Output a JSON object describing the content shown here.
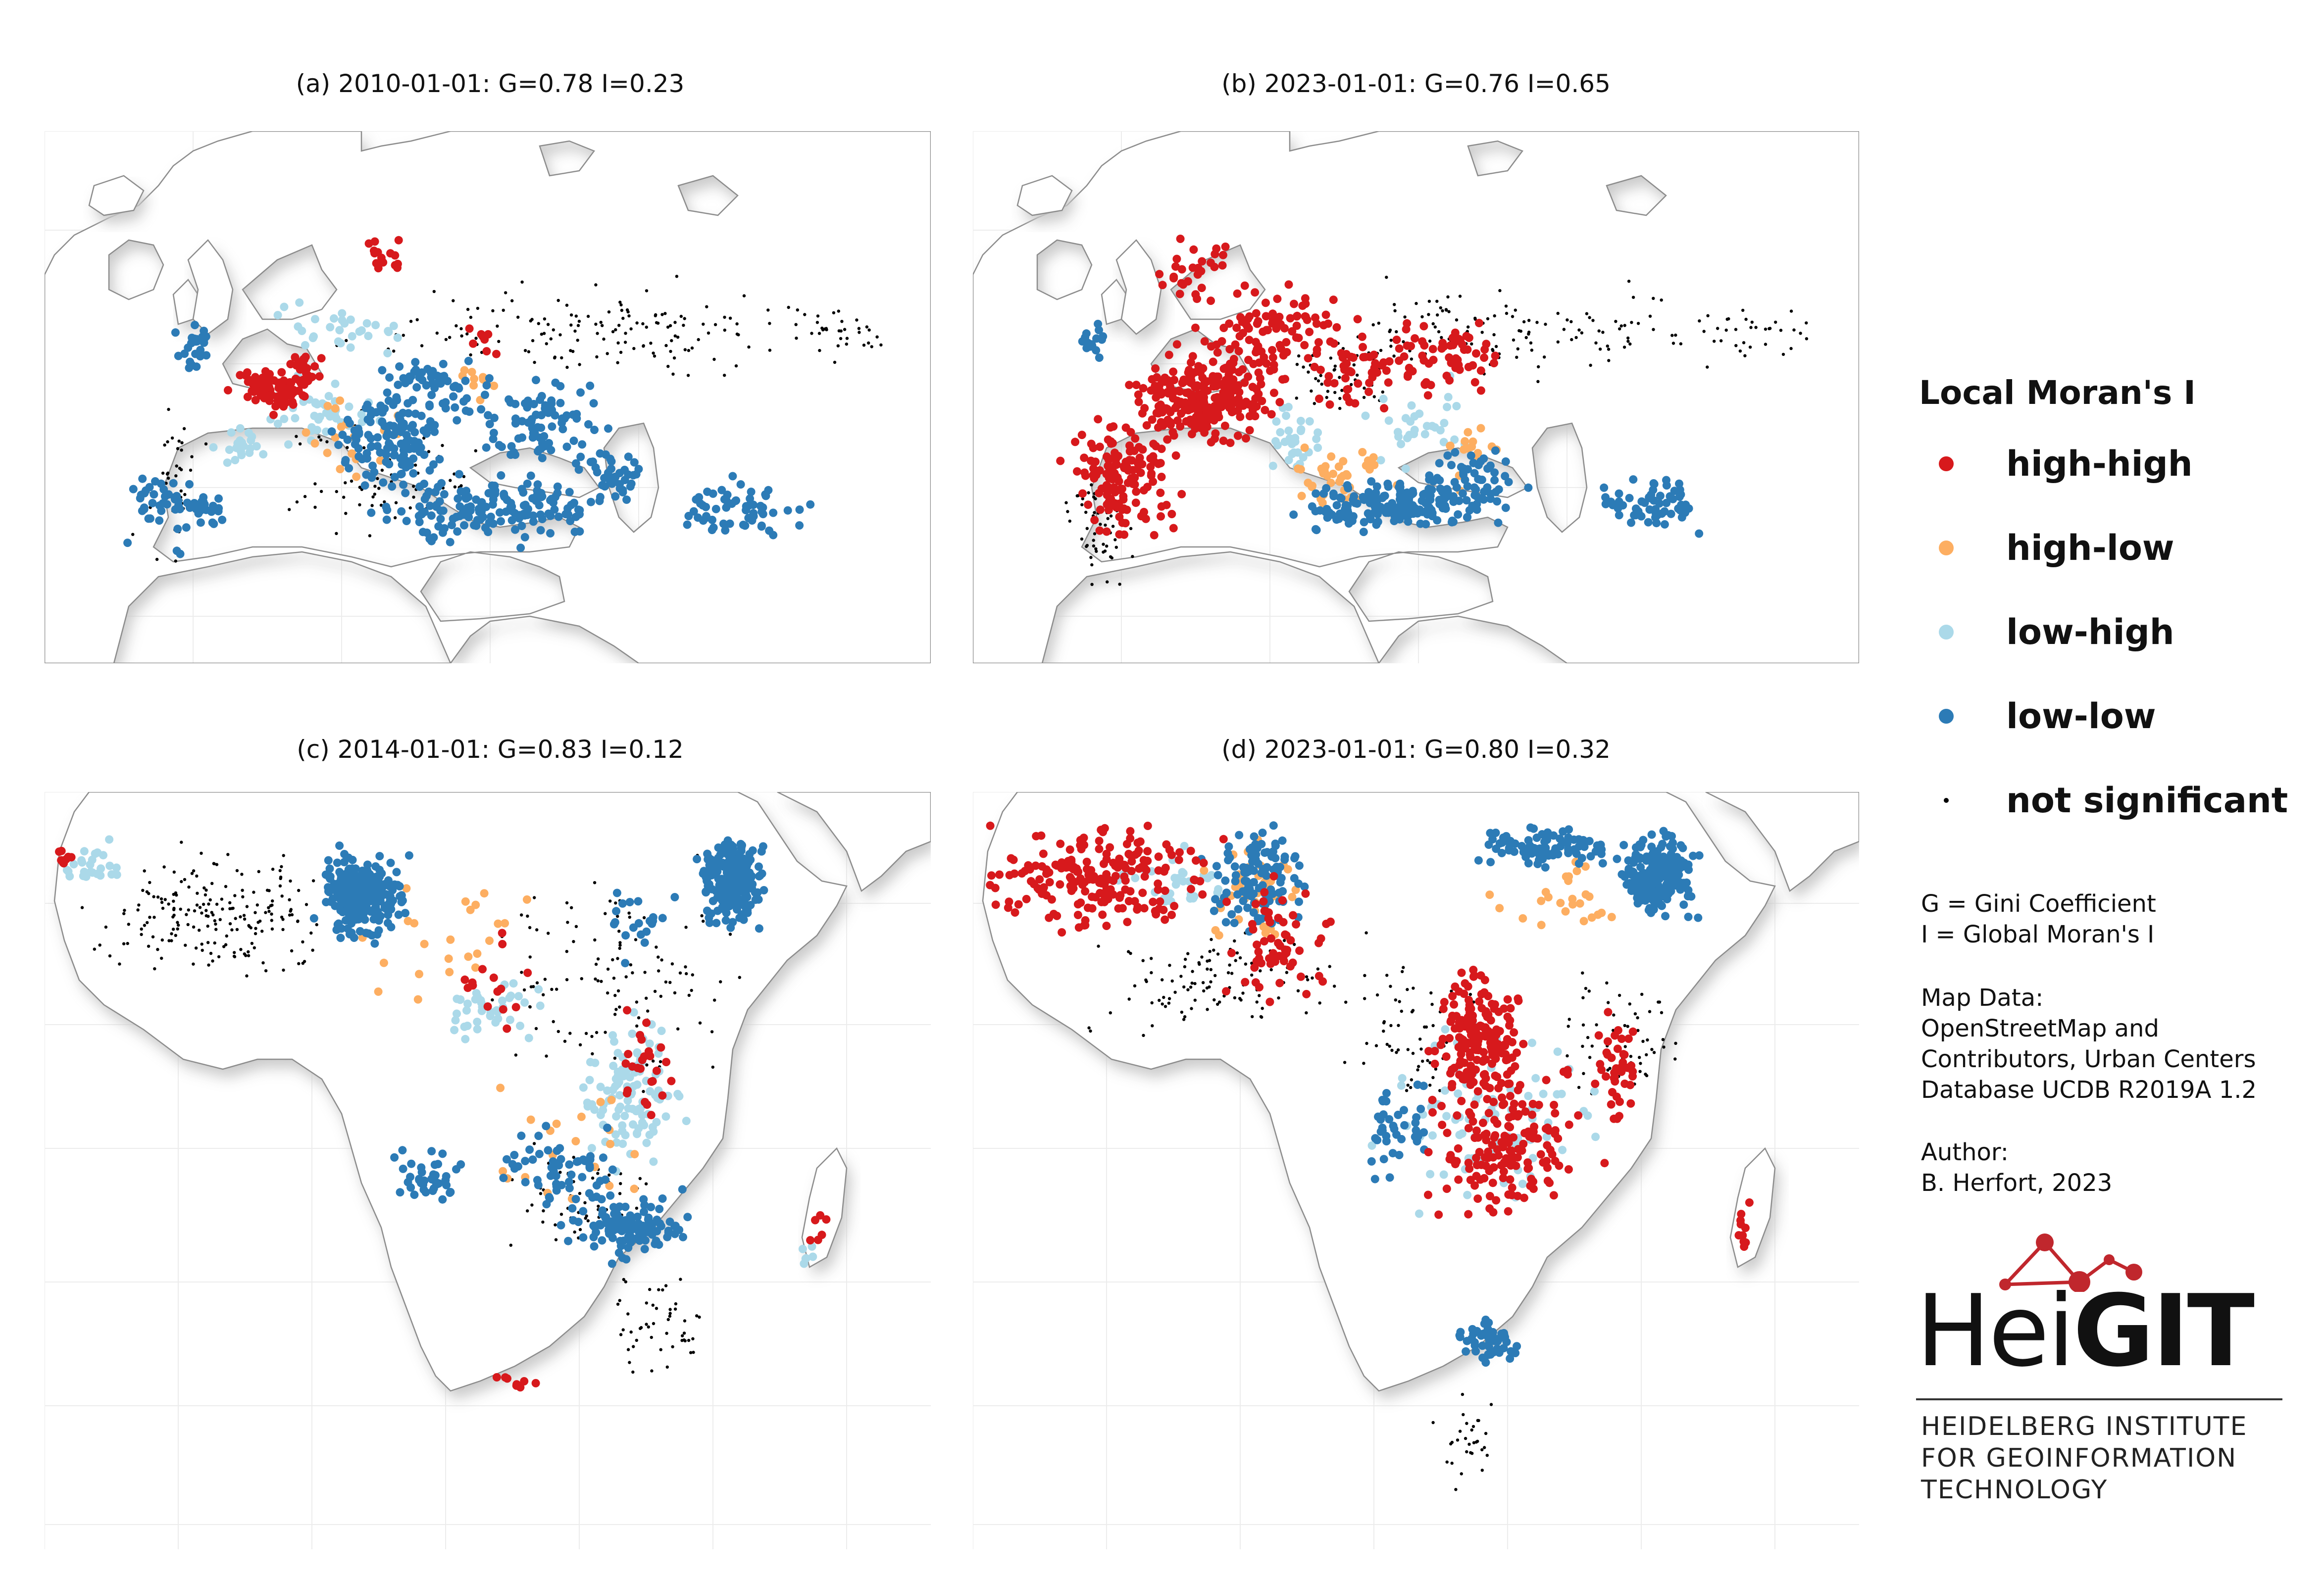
{
  "panels": [
    {
      "id": "a",
      "title": "(a) 2010-01-01: G=0.78 I=0.23",
      "region": "europe"
    },
    {
      "id": "b",
      "title": "(b) 2023-01-01: G=0.76 I=0.65",
      "region": "europe"
    },
    {
      "id": "c",
      "title": "(c) 2014-01-01: G=0.83 I=0.12",
      "region": "africa"
    },
    {
      "id": "d",
      "title": "(d) 2023-01-01: G=0.80 I=0.32",
      "region": "africa"
    }
  ],
  "legend": {
    "title": "Local Moran's I",
    "items": [
      {
        "label": "high-high",
        "color": "#d7191c"
      },
      {
        "label": "high-low",
        "color": "#fdae61"
      },
      {
        "label": "low-high",
        "color": "#abd9e9"
      },
      {
        "label": "low-low",
        "color": "#2c7bb6"
      },
      {
        "label": "not significant",
        "color": "#000000"
      }
    ]
  },
  "notes": {
    "gini": "G = Gini Coefficient",
    "moran": "I = Global Moran's I",
    "map_data_label": "Map Data:",
    "map_data_1": "OpenStreetMap and",
    "map_data_2": "Contributors, Urban Centers",
    "map_data_3": "Database UCDB R2019A 1.2",
    "author_label": "Author:",
    "author": "B. Herfort, 2023"
  },
  "logo": {
    "word_light": "Hei",
    "word_bold": "GIT",
    "sub_1": "HEIDELBERG INSTITUTE",
    "sub_2": "FOR GEOINFORMATION",
    "sub_3": "TECHNOLOGY"
  },
  "colors": {
    "high_high": "#d7191c",
    "high_low": "#fdae61",
    "low_high": "#abd9e9",
    "low_low": "#2c7bb6",
    "not_significant": "#000000",
    "land": "#ffffff",
    "shadow": "#c8c8c8",
    "grid": "#ececec",
    "coast": "#8c8c8c"
  }
}
